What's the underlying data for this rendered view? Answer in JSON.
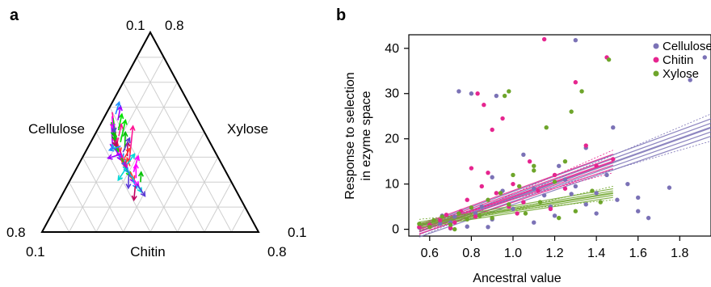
{
  "figure": {
    "panel_a_letter": "a",
    "panel_b_letter": "b"
  },
  "chart_data": [
    {
      "type": "ternary-arrows",
      "vertices": {
        "left": "Cellulose",
        "right": "Xylose",
        "bottom": "Chitin"
      },
      "corner_ticks": {
        "top_left": "0.1",
        "top_right": "0.8",
        "left": "0.8",
        "bottom_left": "0.1",
        "bottom_right": "0.8",
        "right": "0.1"
      },
      "grid": true,
      "arrow_colors": [
        "#ff1493",
        "#00e000",
        "#a100ff",
        "#1e90ff",
        "#ff3b30",
        "#00d8d8",
        "#ff00ff",
        "#5b3bd6",
        "#00c000",
        "#c10060"
      ],
      "arrows_uv": [
        [
          [
            0.4,
            0.55
          ],
          [
            0.06,
            0.22
          ]
        ],
        [
          [
            0.43,
            0.6
          ],
          [
            0.1,
            0.25
          ]
        ],
        [
          [
            0.47,
            0.58
          ],
          [
            0.12,
            0.2
          ]
        ],
        [
          [
            0.5,
            0.63
          ],
          [
            0.15,
            0.3
          ]
        ],
        [
          [
            0.53,
            0.6
          ],
          [
            0.2,
            0.27
          ]
        ],
        [
          [
            0.56,
            0.66
          ],
          [
            0.18,
            0.33
          ]
        ],
        [
          [
            0.6,
            0.62
          ],
          [
            0.25,
            0.28
          ]
        ],
        [
          [
            0.62,
            0.67
          ],
          [
            0.28,
            0.33
          ]
        ],
        [
          [
            0.45,
            0.52
          ],
          [
            0.1,
            0.18
          ]
        ],
        [
          [
            0.48,
            0.57
          ],
          [
            0.14,
            0.22
          ]
        ],
        [
          [
            0.52,
            0.55
          ],
          [
            0.18,
            0.21
          ]
        ],
        [
          [
            0.55,
            0.6
          ],
          [
            0.2,
            0.25
          ]
        ],
        [
          [
            0.58,
            0.64
          ],
          [
            0.22,
            0.29
          ]
        ],
        [
          [
            0.61,
            0.7
          ],
          [
            0.26,
            0.35
          ]
        ],
        [
          [
            0.64,
            0.65
          ],
          [
            0.3,
            0.3
          ]
        ],
        [
          [
            0.66,
            0.69
          ],
          [
            0.32,
            0.34
          ]
        ],
        [
          [
            0.42,
            0.48
          ],
          [
            0.08,
            0.14
          ]
        ],
        [
          [
            0.46,
            0.5
          ],
          [
            0.13,
            0.17
          ]
        ],
        [
          [
            0.5,
            0.54
          ],
          [
            0.16,
            0.2
          ]
        ],
        [
          [
            0.54,
            0.57
          ],
          [
            0.19,
            0.23
          ]
        ],
        [
          [
            0.57,
            0.68
          ],
          [
            0.24,
            0.34
          ]
        ],
        [
          [
            0.63,
            0.72
          ],
          [
            0.29,
            0.37
          ]
        ],
        [
          [
            0.65,
            0.75
          ],
          [
            0.31,
            0.4
          ]
        ],
        [
          [
            0.68,
            0.78
          ],
          [
            0.34,
            0.42
          ]
        ],
        [
          [
            0.7,
            0.74
          ],
          [
            0.37,
            0.4
          ]
        ],
        [
          [
            0.72,
            0.8
          ],
          [
            0.38,
            0.45
          ]
        ],
        [
          [
            0.74,
            0.77
          ],
          [
            0.4,
            0.43
          ]
        ],
        [
          [
            0.76,
            0.82
          ],
          [
            0.42,
            0.47
          ]
        ],
        [
          [
            0.59,
            0.5
          ],
          [
            0.3,
            0.27
          ]
        ],
        [
          [
            0.62,
            0.55
          ],
          [
            0.33,
            0.31
          ]
        ],
        [
          [
            0.65,
            0.47
          ],
          [
            0.35,
            0.33
          ]
        ],
        [
          [
            0.55,
            0.44
          ],
          [
            0.25,
            0.24
          ]
        ],
        [
          [
            0.61,
            0.63
          ],
          [
            0.28,
            0.19
          ]
        ],
        [
          [
            0.57,
            0.59
          ],
          [
            0.26,
            0.18
          ]
        ],
        [
          [
            0.67,
            0.63
          ],
          [
            0.36,
            0.33
          ]
        ],
        [
          [
            0.69,
            0.74
          ],
          [
            0.33,
            0.3
          ]
        ],
        [
          [
            0.73,
            0.66
          ],
          [
            0.41,
            0.4
          ]
        ],
        [
          [
            0.71,
            0.78
          ],
          [
            0.36,
            0.37
          ]
        ],
        [
          [
            0.75,
            0.7
          ],
          [
            0.44,
            0.44
          ]
        ],
        [
          [
            0.77,
            0.84
          ],
          [
            0.41,
            0.41
          ]
        ],
        [
          [
            0.52,
            0.46
          ],
          [
            0.22,
            0.21
          ]
        ],
        [
          [
            0.49,
            0.41
          ],
          [
            0.2,
            0.18
          ]
        ],
        [
          [
            0.44,
            0.37
          ],
          [
            0.16,
            0.13
          ]
        ],
        [
          [
            0.41,
            0.35
          ],
          [
            0.11,
            0.09
          ]
        ],
        [
          [
            0.63,
            0.58
          ],
          [
            0.31,
            0.34
          ]
        ],
        [
          [
            0.66,
            0.61
          ],
          [
            0.34,
            0.38
          ]
        ],
        [
          [
            0.7,
            0.62
          ],
          [
            0.39,
            0.41
          ]
        ],
        [
          [
            0.6,
            0.53
          ],
          [
            0.29,
            0.32
          ]
        ]
      ]
    },
    {
      "type": "scatter",
      "legend": [
        "Cellulose",
        "Chitin",
        "Xylose"
      ],
      "legend_position": "top-right",
      "xlabel": "Ancestral value",
      "ylabel_lines": [
        "Response to selection",
        "in ezyme space"
      ],
      "xlim": [
        0.5,
        1.95
      ],
      "ylim": [
        -1.5,
        43
      ],
      "x_ticks": [
        0.6,
        0.8,
        1.0,
        1.2,
        1.4,
        1.6,
        1.8
      ],
      "y_ticks": [
        0,
        10,
        20,
        30,
        40
      ],
      "series": [
        {
          "name": "Cellulose",
          "color": "#7b72b6",
          "points": [
            [
              0.55,
              0.4
            ],
            [
              0.6,
              0.8
            ],
            [
              0.65,
              1.2
            ],
            [
              0.7,
              1.5
            ],
            [
              0.72,
              2.8
            ],
            [
              0.78,
              0.6
            ],
            [
              0.82,
              3.5
            ],
            [
              0.85,
              5.0
            ],
            [
              0.9,
              2.2
            ],
            [
              0.95,
              8.5
            ],
            [
              1.0,
              4.5
            ],
            [
              1.05,
              6.0
            ],
            [
              1.1,
              9.0
            ],
            [
              1.15,
              7.5
            ],
            [
              1.2,
              3.0
            ],
            [
              1.25,
              11.0
            ],
            [
              1.3,
              9.5
            ],
            [
              1.35,
              5.5
            ],
            [
              1.4,
              8.0
            ],
            [
              1.45,
              12.0
            ],
            [
              1.5,
              6.5
            ],
            [
              1.55,
              10.0
            ],
            [
              1.6,
              4.0
            ],
            [
              1.65,
              2.5
            ],
            [
              1.75,
              9.2
            ],
            [
              1.85,
              33.0
            ],
            [
              1.92,
              38.0
            ],
            [
              1.3,
              41.8
            ],
            [
              0.74,
              30.5
            ],
            [
              0.8,
              30.0
            ],
            [
              0.92,
              29.5
            ],
            [
              1.05,
              16.5
            ],
            [
              1.22,
              14.0
            ],
            [
              1.35,
              18.0
            ],
            [
              1.48,
              22.5
            ],
            [
              0.66,
              3.0
            ],
            [
              0.7,
              0.2
            ],
            [
              0.9,
              11.5
            ],
            [
              1.1,
              1.5
            ],
            [
              1.4,
              3.5
            ],
            [
              1.6,
              7.0
            ],
            [
              0.88,
              0.5
            ],
            [
              1.18,
              5.0
            ],
            [
              1.28,
              7.8
            ]
          ],
          "fit_line": {
            "x": [
              0.55,
              1.95
            ],
            "y": [
              -0.5,
              22.5
            ]
          },
          "fit_spread": 1.2
        },
        {
          "name": "Chitin",
          "color": "#e6258f",
          "points": [
            [
              0.55,
              0.5
            ],
            [
              0.6,
              1.0
            ],
            [
              0.65,
              2.0
            ],
            [
              0.68,
              3.2
            ],
            [
              0.72,
              1.5
            ],
            [
              0.75,
              4.0
            ],
            [
              0.78,
              6.5
            ],
            [
              0.8,
              13.5
            ],
            [
              0.82,
              2.8
            ],
            [
              0.85,
              9.5
            ],
            [
              0.88,
              12.5
            ],
            [
              0.9,
              22.0
            ],
            [
              0.92,
              8.0
            ],
            [
              0.95,
              24.5
            ],
            [
              0.98,
              5.0
            ],
            [
              1.0,
              10.0
            ],
            [
              1.05,
              6.0
            ],
            [
              1.08,
              15.0
            ],
            [
              1.12,
              8.5
            ],
            [
              1.15,
              42.0
            ],
            [
              1.2,
              12.0
            ],
            [
              1.25,
              9.0
            ],
            [
              1.3,
              32.5
            ],
            [
              1.35,
              18.5
            ],
            [
              1.4,
              14.0
            ],
            [
              1.45,
              38.0
            ],
            [
              1.48,
              15.5
            ],
            [
              0.83,
              30.0
            ],
            [
              0.86,
              27.5
            ],
            [
              0.7,
              0.3
            ],
            [
              1.02,
              3.5
            ],
            [
              1.18,
              4.5
            ]
          ],
          "fit_line": {
            "x": [
              0.55,
              1.48
            ],
            "y": [
              0.0,
              15.0
            ]
          },
          "fit_spread": 1.0
        },
        {
          "name": "Xylose",
          "color": "#6ea52b",
          "points": [
            [
              0.55,
              1.2
            ],
            [
              0.6,
              0.5
            ],
            [
              0.62,
              2.0
            ],
            [
              0.66,
              2.8
            ],
            [
              0.7,
              1.0
            ],
            [
              0.74,
              3.5
            ],
            [
              0.78,
              2.2
            ],
            [
              0.8,
              4.8
            ],
            [
              0.84,
              3.0
            ],
            [
              0.88,
              6.5
            ],
            [
              0.9,
              2.5
            ],
            [
              0.94,
              8.0
            ],
            [
              0.98,
              5.5
            ],
            [
              1.0,
              12.0
            ],
            [
              1.03,
              9.5
            ],
            [
              1.06,
              3.5
            ],
            [
              1.1,
              13.0
            ],
            [
              1.13,
              6.0
            ],
            [
              1.16,
              22.5
            ],
            [
              1.2,
              10.5
            ],
            [
              1.25,
              15.0
            ],
            [
              1.28,
              26.0
            ],
            [
              1.3,
              4.0
            ],
            [
              1.33,
              30.5
            ],
            [
              1.38,
              8.5
            ],
            [
              1.42,
              6.0
            ],
            [
              1.46,
              37.5
            ],
            [
              0.96,
              29.5
            ],
            [
              0.98,
              30.5
            ],
            [
              1.1,
              14.0
            ],
            [
              1.22,
              2.5
            ],
            [
              0.72,
              0.0
            ]
          ],
          "fit_line": {
            "x": [
              0.55,
              1.48
            ],
            "y": [
              1.0,
              8.0
            ]
          },
          "fit_spread": 0.6
        }
      ]
    }
  ]
}
